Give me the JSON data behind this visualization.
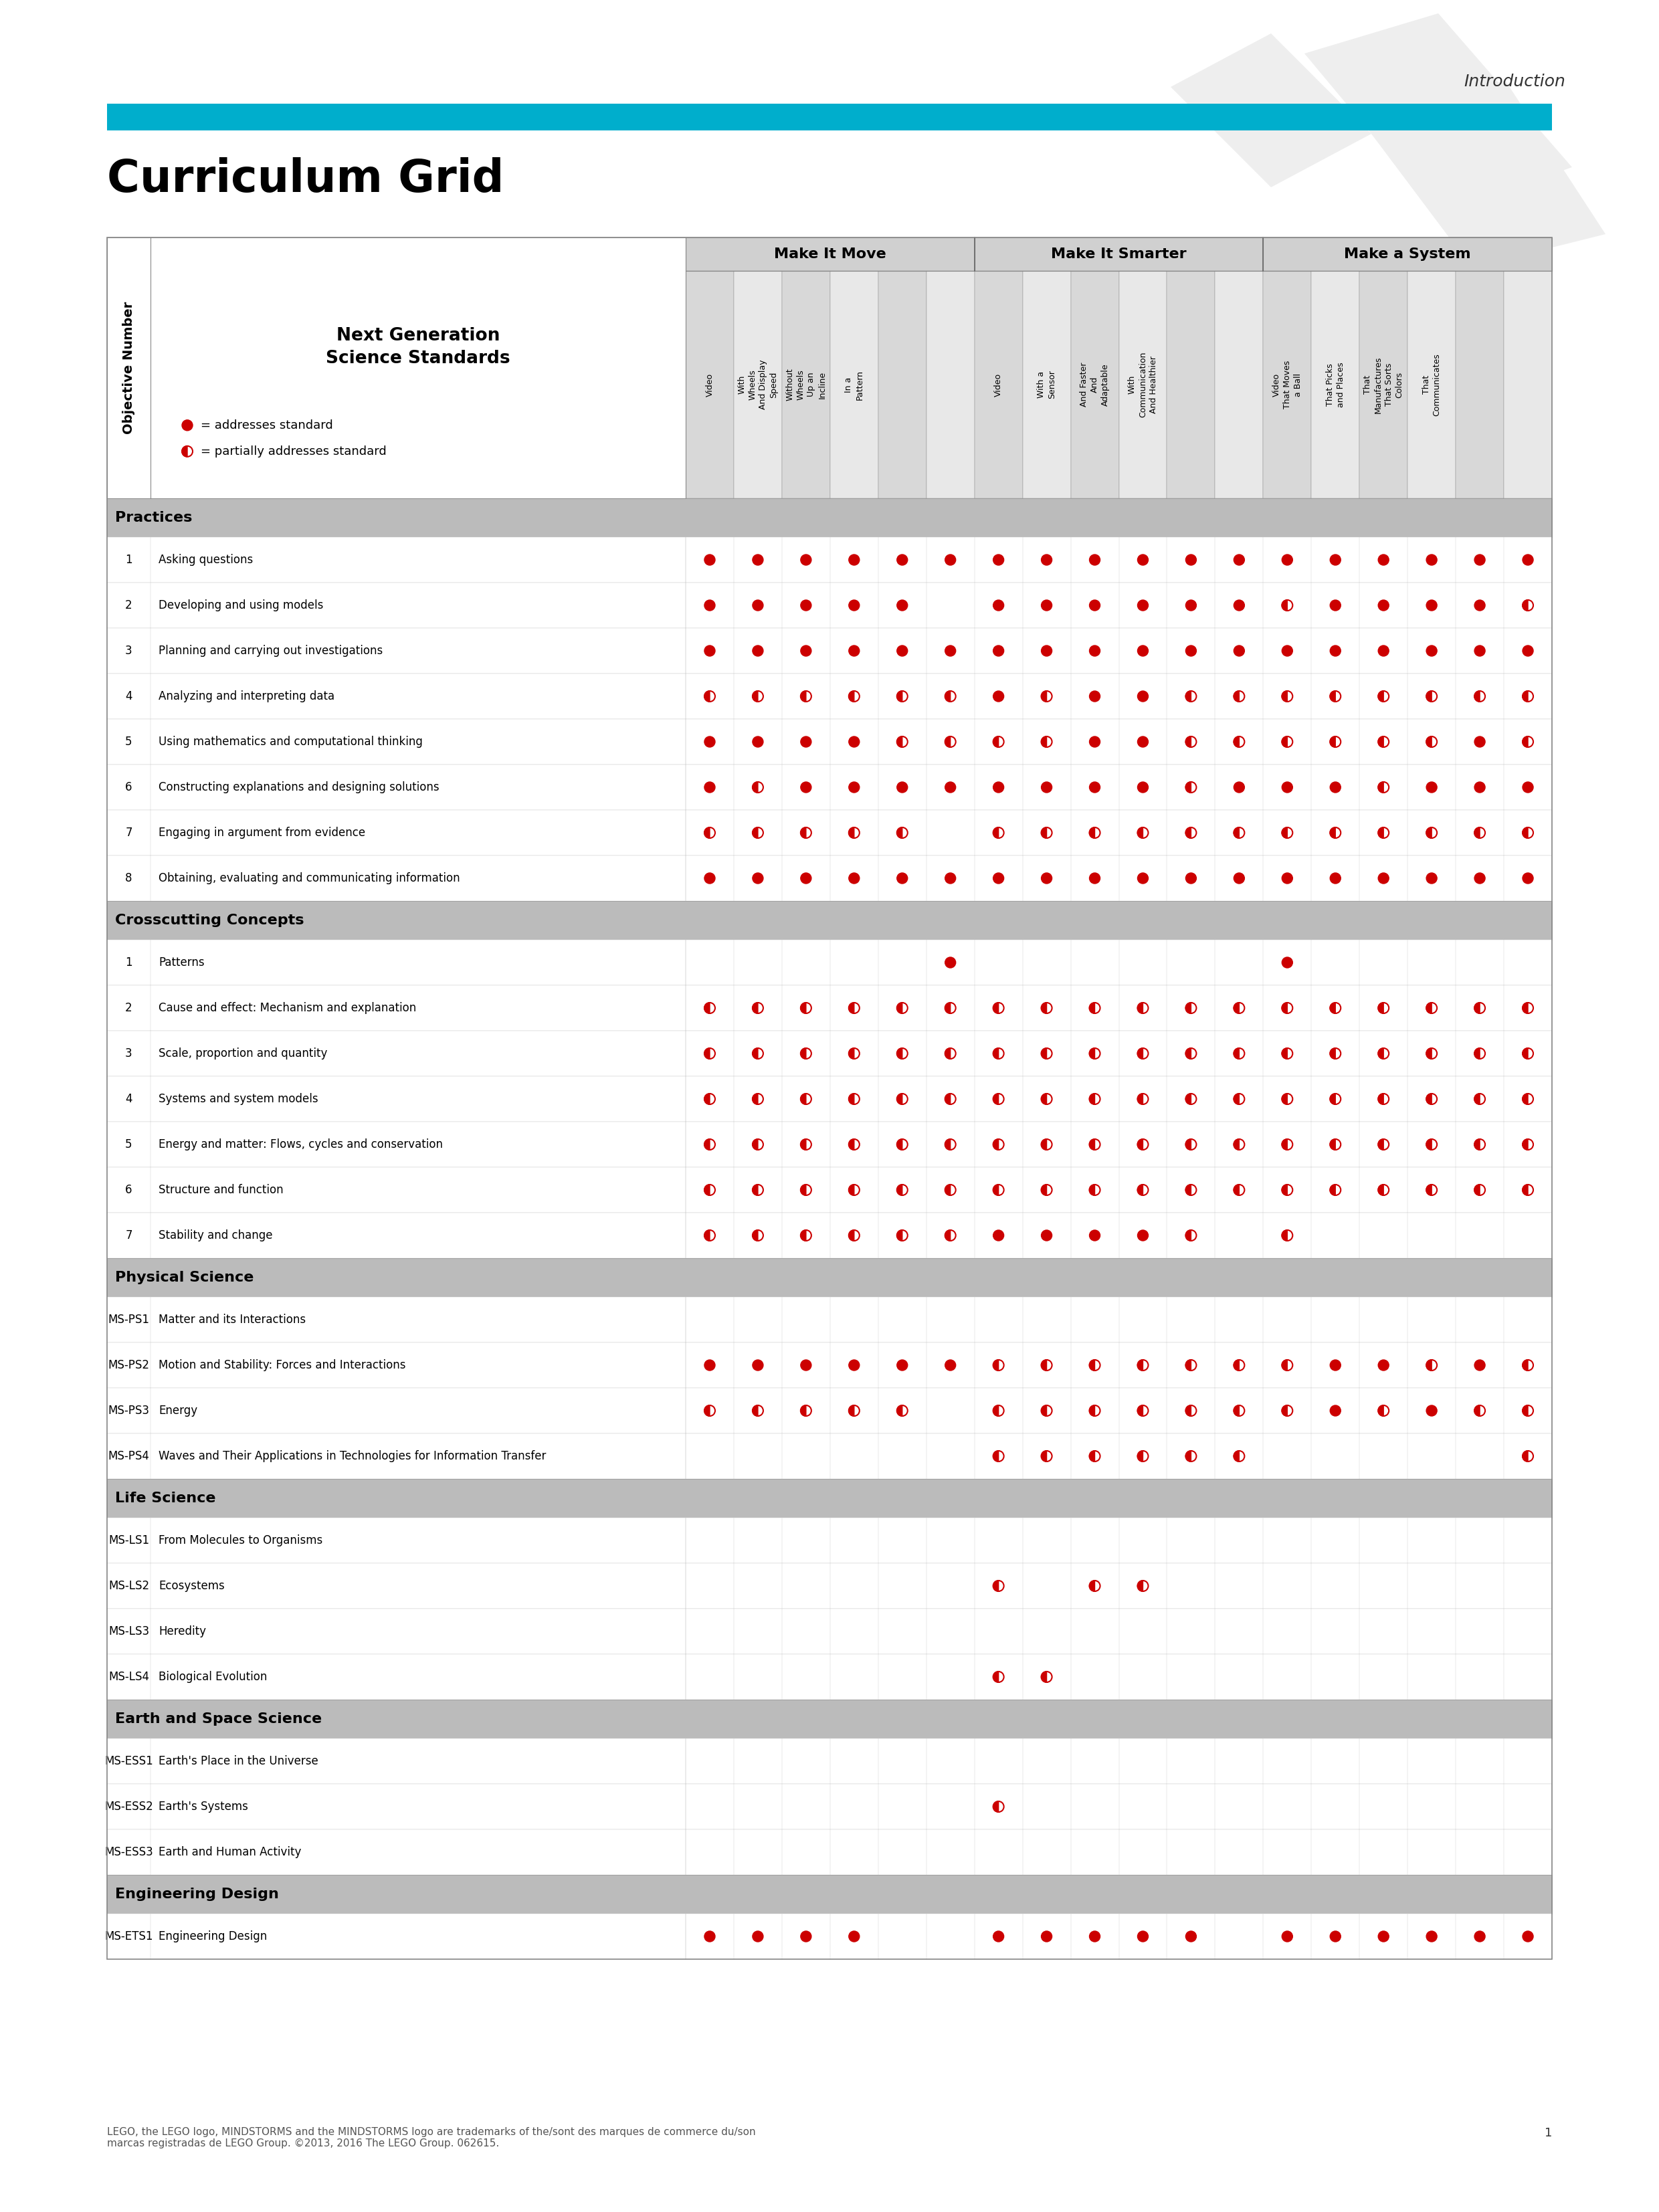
{
  "page_title": "Curriculum Grid",
  "header_text": "Introduction",
  "cyan_bar_color": "#00AECC",
  "section_header_color": "#C0C0C0",
  "col_header_bg_dark": "#C8C8C8",
  "col_header_bg_light": "#DCDCDC",
  "row_bg": "#FFFFFF",
  "border_color": "#AAAAAA",
  "dot_color": "#CC0000",
  "col_groups": [
    {
      "name": "Make It Move",
      "span": 6
    },
    {
      "name": "Make It Smarter",
      "span": 6
    },
    {
      "name": "Make a System",
      "span": 6
    }
  ],
  "col_label_names": [
    "Video",
    "With\nWheels\nAnd Display\nSpeed",
    "Without\nWheels\nUp an\nIncline",
    "In a\nPattern",
    "",
    "",
    "Video",
    "With a\nSensor",
    "And Faster\nAnd\nAdaptable",
    "With\nCommunication\nAnd Healthier",
    "",
    "",
    "Video\nThat Moves\na Ball",
    "That Picks\nand Places",
    "That\nManufactures\nThat Sorts\nColors",
    "That\nCommunicates",
    "",
    ""
  ],
  "sections": [
    {
      "name": "Practices",
      "rows": [
        {
          "id": "1",
          "label": "Asking questions",
          "dots": [
            "F",
            "F",
            "F",
            "F",
            "F",
            "F",
            "F",
            "F",
            "F",
            "F",
            "F",
            "F",
            "F",
            "F",
            "F",
            "F",
            "F",
            "F"
          ]
        },
        {
          "id": "2",
          "label": "Developing and using models",
          "dots": [
            "F",
            "F",
            "F",
            "F",
            "F",
            " ",
            "F",
            "F",
            "F",
            "F",
            "F",
            "F",
            "H",
            "F",
            "F",
            "F",
            "F",
            "H"
          ]
        },
        {
          "id": "3",
          "label": "Planning and carrying out investigations",
          "dots": [
            "F",
            "F",
            "F",
            "F",
            "F",
            "F",
            "F",
            "F",
            "F",
            "F",
            "F",
            "F",
            "F",
            "F",
            "F",
            "F",
            "F",
            "F"
          ]
        },
        {
          "id": "4",
          "label": "Analyzing and interpreting data",
          "dots": [
            "H",
            "H",
            "H",
            "H",
            "H",
            "H",
            "F",
            "H",
            "F",
            "F",
            "H",
            "H",
            "H",
            "H",
            "H",
            "H",
            "H",
            "H"
          ]
        },
        {
          "id": "5",
          "label": "Using mathematics and computational thinking",
          "dots": [
            "F",
            "F",
            "F",
            "F",
            "H",
            "H",
            "H",
            "H",
            "F",
            "F",
            "H",
            "H",
            "H",
            "H",
            "H",
            "H",
            "F",
            "H"
          ]
        },
        {
          "id": "6",
          "label": "Constructing explanations and designing solutions",
          "dots": [
            "F",
            "H",
            "F",
            "F",
            "F",
            "F",
            "F",
            "F",
            "F",
            "F",
            "H",
            "F",
            "F",
            "F",
            "H",
            "F",
            "F",
            "F"
          ]
        },
        {
          "id": "7",
          "label": "Engaging in argument from evidence",
          "dots": [
            "H",
            "H",
            "H",
            "H",
            "H",
            " ",
            "H",
            "H",
            "H",
            "H",
            "H",
            "H",
            "H",
            "H",
            "H",
            "H",
            "H",
            "H"
          ]
        },
        {
          "id": "8",
          "label": "Obtaining, evaluating and communicating information",
          "dots": [
            "F",
            "F",
            "F",
            "F",
            "F",
            "F",
            "F",
            "F",
            "F",
            "F",
            "F",
            "F",
            "F",
            "F",
            "F",
            "F",
            "F",
            "F"
          ]
        }
      ]
    },
    {
      "name": "Crosscutting Concepts",
      "rows": [
        {
          "id": "1",
          "label": "Patterns",
          "dots": [
            " ",
            " ",
            " ",
            " ",
            " ",
            "F",
            " ",
            " ",
            " ",
            " ",
            " ",
            " ",
            "F",
            " ",
            " ",
            " ",
            " ",
            " "
          ]
        },
        {
          "id": "2",
          "label": "Cause and effect: Mechanism and explanation",
          "dots": [
            "H",
            "H",
            "H",
            "H",
            "H",
            "H",
            "H",
            "H",
            "H",
            "H",
            "H",
            "H",
            "H",
            "H",
            "H",
            "H",
            "H",
            "H"
          ]
        },
        {
          "id": "3",
          "label": "Scale, proportion and quantity",
          "dots": [
            "H",
            "H",
            "H",
            "H",
            "H",
            "H",
            "H",
            "H",
            "H",
            "H",
            "H",
            "H",
            "H",
            "H",
            "H",
            "H",
            "H",
            "H"
          ]
        },
        {
          "id": "4",
          "label": "Systems and system models",
          "dots": [
            "H",
            "H",
            "H",
            "H",
            "H",
            "H",
            "H",
            "H",
            "H",
            "H",
            "H",
            "H",
            "H",
            "H",
            "H",
            "H",
            "H",
            "H"
          ]
        },
        {
          "id": "5",
          "label": "Energy and matter: Flows, cycles and conservation",
          "dots": [
            "H",
            "H",
            "H",
            "H",
            "H",
            "H",
            "H",
            "H",
            "H",
            "H",
            "H",
            "H",
            "H",
            "H",
            "H",
            "H",
            "H",
            "H"
          ]
        },
        {
          "id": "6",
          "label": "Structure and function",
          "dots": [
            "H",
            "H",
            "H",
            "H",
            "H",
            "H",
            "H",
            "H",
            "H",
            "H",
            "H",
            "H",
            "H",
            "H",
            "H",
            "H",
            "H",
            "H"
          ]
        },
        {
          "id": "7",
          "label": "Stability and change",
          "dots": [
            "H",
            "H",
            "H",
            "H",
            "H",
            "H",
            "F",
            "F",
            "F",
            "F",
            "H",
            " ",
            "H",
            " ",
            " ",
            " ",
            " ",
            " "
          ]
        }
      ]
    },
    {
      "name": "Physical Science",
      "rows": [
        {
          "id": "MS-PS1",
          "label": "Matter and its Interactions",
          "dots": [
            " ",
            " ",
            " ",
            " ",
            " ",
            " ",
            " ",
            " ",
            " ",
            " ",
            " ",
            " ",
            " ",
            " ",
            " ",
            " ",
            " ",
            " "
          ]
        },
        {
          "id": "MS-PS2",
          "label": "Motion and Stability: Forces and Interactions",
          "dots": [
            "F",
            "F",
            "F",
            "F",
            "F",
            "F",
            "H",
            "H",
            "H",
            "H",
            "H",
            "H",
            "H",
            "F",
            "F",
            "H",
            "F",
            "H"
          ]
        },
        {
          "id": "MS-PS3",
          "label": "Energy",
          "dots": [
            "H",
            "H",
            "H",
            "H",
            "H",
            " ",
            "H",
            "H",
            "H",
            "H",
            "H",
            "H",
            "H",
            "F",
            "H",
            "F",
            "H",
            "H"
          ]
        },
        {
          "id": "MS-PS4",
          "label": "Waves and Their Applications in Technologies for Information Transfer",
          "dots": [
            " ",
            " ",
            " ",
            " ",
            " ",
            " ",
            "H",
            "H",
            "H",
            "H",
            "H",
            "H",
            " ",
            " ",
            " ",
            " ",
            " ",
            "H"
          ]
        }
      ]
    },
    {
      "name": "Life Science",
      "rows": [
        {
          "id": "MS-LS1",
          "label": "From Molecules to Organisms",
          "dots": [
            " ",
            " ",
            " ",
            " ",
            " ",
            " ",
            " ",
            " ",
            " ",
            " ",
            " ",
            " ",
            " ",
            " ",
            " ",
            " ",
            " ",
            " "
          ]
        },
        {
          "id": "MS-LS2",
          "label": "Ecosystems",
          "dots": [
            " ",
            " ",
            " ",
            " ",
            " ",
            " ",
            "H",
            " ",
            "H",
            "H",
            " ",
            " ",
            " ",
            " ",
            " ",
            " ",
            " ",
            " "
          ]
        },
        {
          "id": "MS-LS3",
          "label": "Heredity",
          "dots": [
            " ",
            " ",
            " ",
            " ",
            " ",
            " ",
            " ",
            " ",
            " ",
            " ",
            " ",
            " ",
            " ",
            " ",
            " ",
            " ",
            " ",
            " "
          ]
        },
        {
          "id": "MS-LS4",
          "label": "Biological Evolution",
          "dots": [
            " ",
            " ",
            " ",
            " ",
            " ",
            " ",
            "H",
            "H",
            " ",
            " ",
            " ",
            " ",
            " ",
            " ",
            " ",
            " ",
            " ",
            " "
          ]
        }
      ]
    },
    {
      "name": "Earth and Space Science",
      "rows": [
        {
          "id": "MS-ESS1",
          "label": "Earth's Place in the Universe",
          "dots": [
            " ",
            " ",
            " ",
            " ",
            " ",
            " ",
            " ",
            " ",
            " ",
            " ",
            " ",
            " ",
            " ",
            " ",
            " ",
            " ",
            " ",
            " "
          ]
        },
        {
          "id": "MS-ESS2",
          "label": "Earth's Systems",
          "dots": [
            " ",
            " ",
            " ",
            " ",
            " ",
            " ",
            "H",
            " ",
            " ",
            " ",
            " ",
            " ",
            " ",
            " ",
            " ",
            " ",
            " ",
            " "
          ]
        },
        {
          "id": "MS-ESS3",
          "label": "Earth and Human Activity",
          "dots": [
            " ",
            " ",
            " ",
            " ",
            " ",
            " ",
            " ",
            " ",
            " ",
            " ",
            " ",
            " ",
            " ",
            " ",
            " ",
            " ",
            " ",
            " "
          ]
        }
      ]
    },
    {
      "name": "Engineering Design",
      "rows": [
        {
          "id": "MS-ETS1",
          "label": "Engineering Design",
          "dots": [
            "F",
            "F",
            "F",
            "F",
            " ",
            " ",
            "F",
            "F",
            "F",
            "F",
            "F",
            " ",
            "F",
            "F",
            "F",
            "F",
            "F",
            "F"
          ]
        }
      ]
    }
  ],
  "footer_text": "LEGO, the LEGO logo, MINDSTORMS and the MINDSTORMS logo are trademarks of the/sont des marques de commerce du/son\nmarcas registradas de LEGO Group. ©2013, 2016 The LEGO Group. 062615.",
  "page_num": "1"
}
